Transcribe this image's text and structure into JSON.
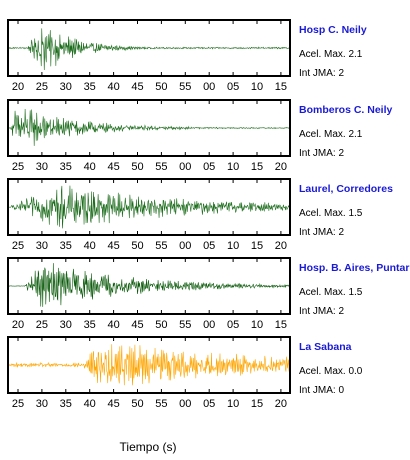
{
  "chart_data": [
    {
      "type": "line",
      "station": "Hosp C. Neily",
      "pga_label": "Acel. Max. 2.1",
      "jma_label": "Int JMA: 2",
      "trace_color": "#1a6b1a",
      "station_color": "#1a1ad6",
      "x_tick_labels": [
        "20",
        "25",
        "30",
        "35",
        "40",
        "45",
        "50",
        "55",
        "00",
        "05",
        "10",
        "15"
      ],
      "waveform": {
        "onset": 0.07,
        "peak": 0.12,
        "decay": 0.12,
        "amplitude": 0.95,
        "pre_noise": 0.03
      }
    },
    {
      "type": "line",
      "station": "Bomberos C. Neily",
      "pga_label": "Acel. Max. 2.1",
      "jma_label": "Int JMA: 2",
      "trace_color": "#1a6b1a",
      "station_color": "#1a1ad6",
      "x_tick_labels": [
        "25",
        "30",
        "35",
        "40",
        "45",
        "50",
        "55",
        "00",
        "05",
        "10",
        "15",
        "20"
      ],
      "waveform": {
        "onset": 0.01,
        "peak": 0.03,
        "decay": 0.2,
        "amplitude": 0.9,
        "pre_noise": 0.02
      }
    },
    {
      "type": "line",
      "station": "Laurel, Corredores",
      "pga_label": "Acel. Max. 1.5",
      "jma_label": "Int JMA: 2",
      "trace_color": "#1a6b1a",
      "station_color": "#1a1ad6",
      "x_tick_labels": [
        "25",
        "30",
        "35",
        "40",
        "45",
        "50",
        "55",
        "00",
        "05",
        "10",
        "15",
        "20"
      ],
      "waveform": {
        "onset": 0.01,
        "peak": 0.18,
        "decay": 0.45,
        "amplitude": 0.85,
        "pre_noise": 0.05
      }
    },
    {
      "type": "line",
      "station": "Hosp. B. Aires, Puntarenas",
      "pga_label": "Acel. Max. 1.5",
      "jma_label": "Int JMA: 2",
      "trace_color": "#0a5a0a",
      "station_color": "#1a1ad6",
      "x_tick_labels": [
        "20",
        "25",
        "30",
        "35",
        "40",
        "45",
        "50",
        "55",
        "00",
        "05",
        "10",
        "15"
      ],
      "waveform": {
        "onset": 0.06,
        "peak": 0.12,
        "decay": 0.3,
        "amplitude": 0.95,
        "pre_noise": 0.01
      }
    },
    {
      "type": "line",
      "station": "La Sabana",
      "pga_label": "Acel. Max. 0.0",
      "jma_label": "Int JMA: 0",
      "trace_color": "#ffa500",
      "station_color": "#1a1ad6",
      "x_tick_labels": [
        "25",
        "30",
        "35",
        "40",
        "45",
        "50",
        "55",
        "00",
        "05",
        "10",
        "15",
        "20"
      ],
      "waveform": {
        "onset": 0.27,
        "peak": 0.32,
        "decay": 0.6,
        "amplitude": 0.9,
        "pre_noise": 0.08,
        "second_burst": 0.7
      }
    }
  ],
  "xlabel": "Tiempo (s)"
}
